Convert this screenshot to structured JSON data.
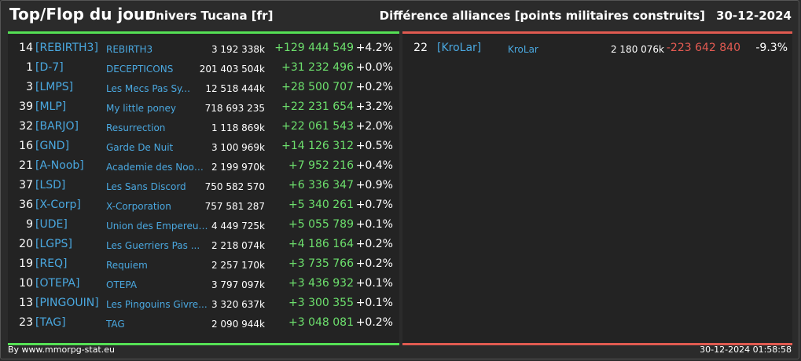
{
  "header": {
    "title": "Top/Flop du jour",
    "universe": "Univers Tucana [fr]",
    "subtitle": "Différence alliances [points militaires construits]",
    "date": "30-12-2024"
  },
  "colors": {
    "positive": "#6de06d",
    "negative": "#e35a52",
    "link": "#4aa8e0",
    "top_border": "#55e055",
    "flop_border": "#e05a50"
  },
  "top": [
    {
      "rank": "14",
      "tag": "[REBIRTH3]",
      "name": "REBIRTH3",
      "points": "3 192 338k",
      "diff": "+129 444 549",
      "pct": "+4.2%"
    },
    {
      "rank": "1",
      "tag": "[D-7]",
      "name": "DECEPTICONS",
      "points": "201 403 504k",
      "diff": "+31 232 496",
      "pct": "+0.0%"
    },
    {
      "rank": "3",
      "tag": "[LMPS]",
      "name": "Les Mecs Pas Sy...",
      "points": "12 518 444k",
      "diff": "+28 500 707",
      "pct": "+0.2%"
    },
    {
      "rank": "39",
      "tag": "[MLP]",
      "name": "My little poney",
      "points": "718 693 235",
      "diff": "+22 231 654",
      "pct": "+3.2%"
    },
    {
      "rank": "32",
      "tag": "[BARJO]",
      "name": "Resurrection",
      "points": "1 118 869k",
      "diff": "+22 061 543",
      "pct": "+2.0%"
    },
    {
      "rank": "16",
      "tag": "[GND]",
      "name": "Garde De Nuit",
      "points": "3 100 969k",
      "diff": "+14 126 312",
      "pct": "+0.5%"
    },
    {
      "rank": "21",
      "tag": "[A-Noob]",
      "name": "Academie des Noob...",
      "points": "2 199 970k",
      "diff": "+7 952 216",
      "pct": "+0.4%"
    },
    {
      "rank": "37",
      "tag": "[LSD]",
      "name": "Les Sans Discord",
      "points": "750 582 570",
      "diff": "+6 336 347",
      "pct": "+0.9%"
    },
    {
      "rank": "36",
      "tag": "[X-Corp]",
      "name": "X-Corporation",
      "points": "757 581 287",
      "diff": "+5 340 261",
      "pct": "+0.7%"
    },
    {
      "rank": "9",
      "tag": "[UDE]",
      "name": "Union des Empereur...",
      "points": "4 449 725k",
      "diff": "+5 055 789",
      "pct": "+0.1%"
    },
    {
      "rank": "20",
      "tag": "[LGPS]",
      "name": "Les Guerriers Pas ...",
      "points": "2 218 074k",
      "diff": "+4 186 164",
      "pct": "+0.2%"
    },
    {
      "rank": "19",
      "tag": "[REQ]",
      "name": "Requiem",
      "points": "2 257 170k",
      "diff": "+3 735 766",
      "pct": "+0.2%"
    },
    {
      "rank": "10",
      "tag": "[OTEPA]",
      "name": "OTEPA",
      "points": "3 797 097k",
      "diff": "+3 436 932",
      "pct": "+0.1%"
    },
    {
      "rank": "13",
      "tag": "[PINGOUIN]",
      "name": "Les Pingouins Givre...",
      "points": "3 320 637k",
      "diff": "+3 300 355",
      "pct": "+0.1%"
    },
    {
      "rank": "23",
      "tag": "[TAG]",
      "name": "TAG",
      "points": "2 090 944k",
      "diff": "+3 048 081",
      "pct": "+0.2%"
    }
  ],
  "flop": [
    {
      "rank": "22",
      "tag": "[KroLar]",
      "name": "KroLar",
      "points": "2 180 076k",
      "diff": "-223 642 840",
      "pct": "-9.3%"
    }
  ],
  "footer": {
    "credit": "By www.mmorpg-stat.eu",
    "timestamp": "30-12-2024 01:58:58"
  }
}
